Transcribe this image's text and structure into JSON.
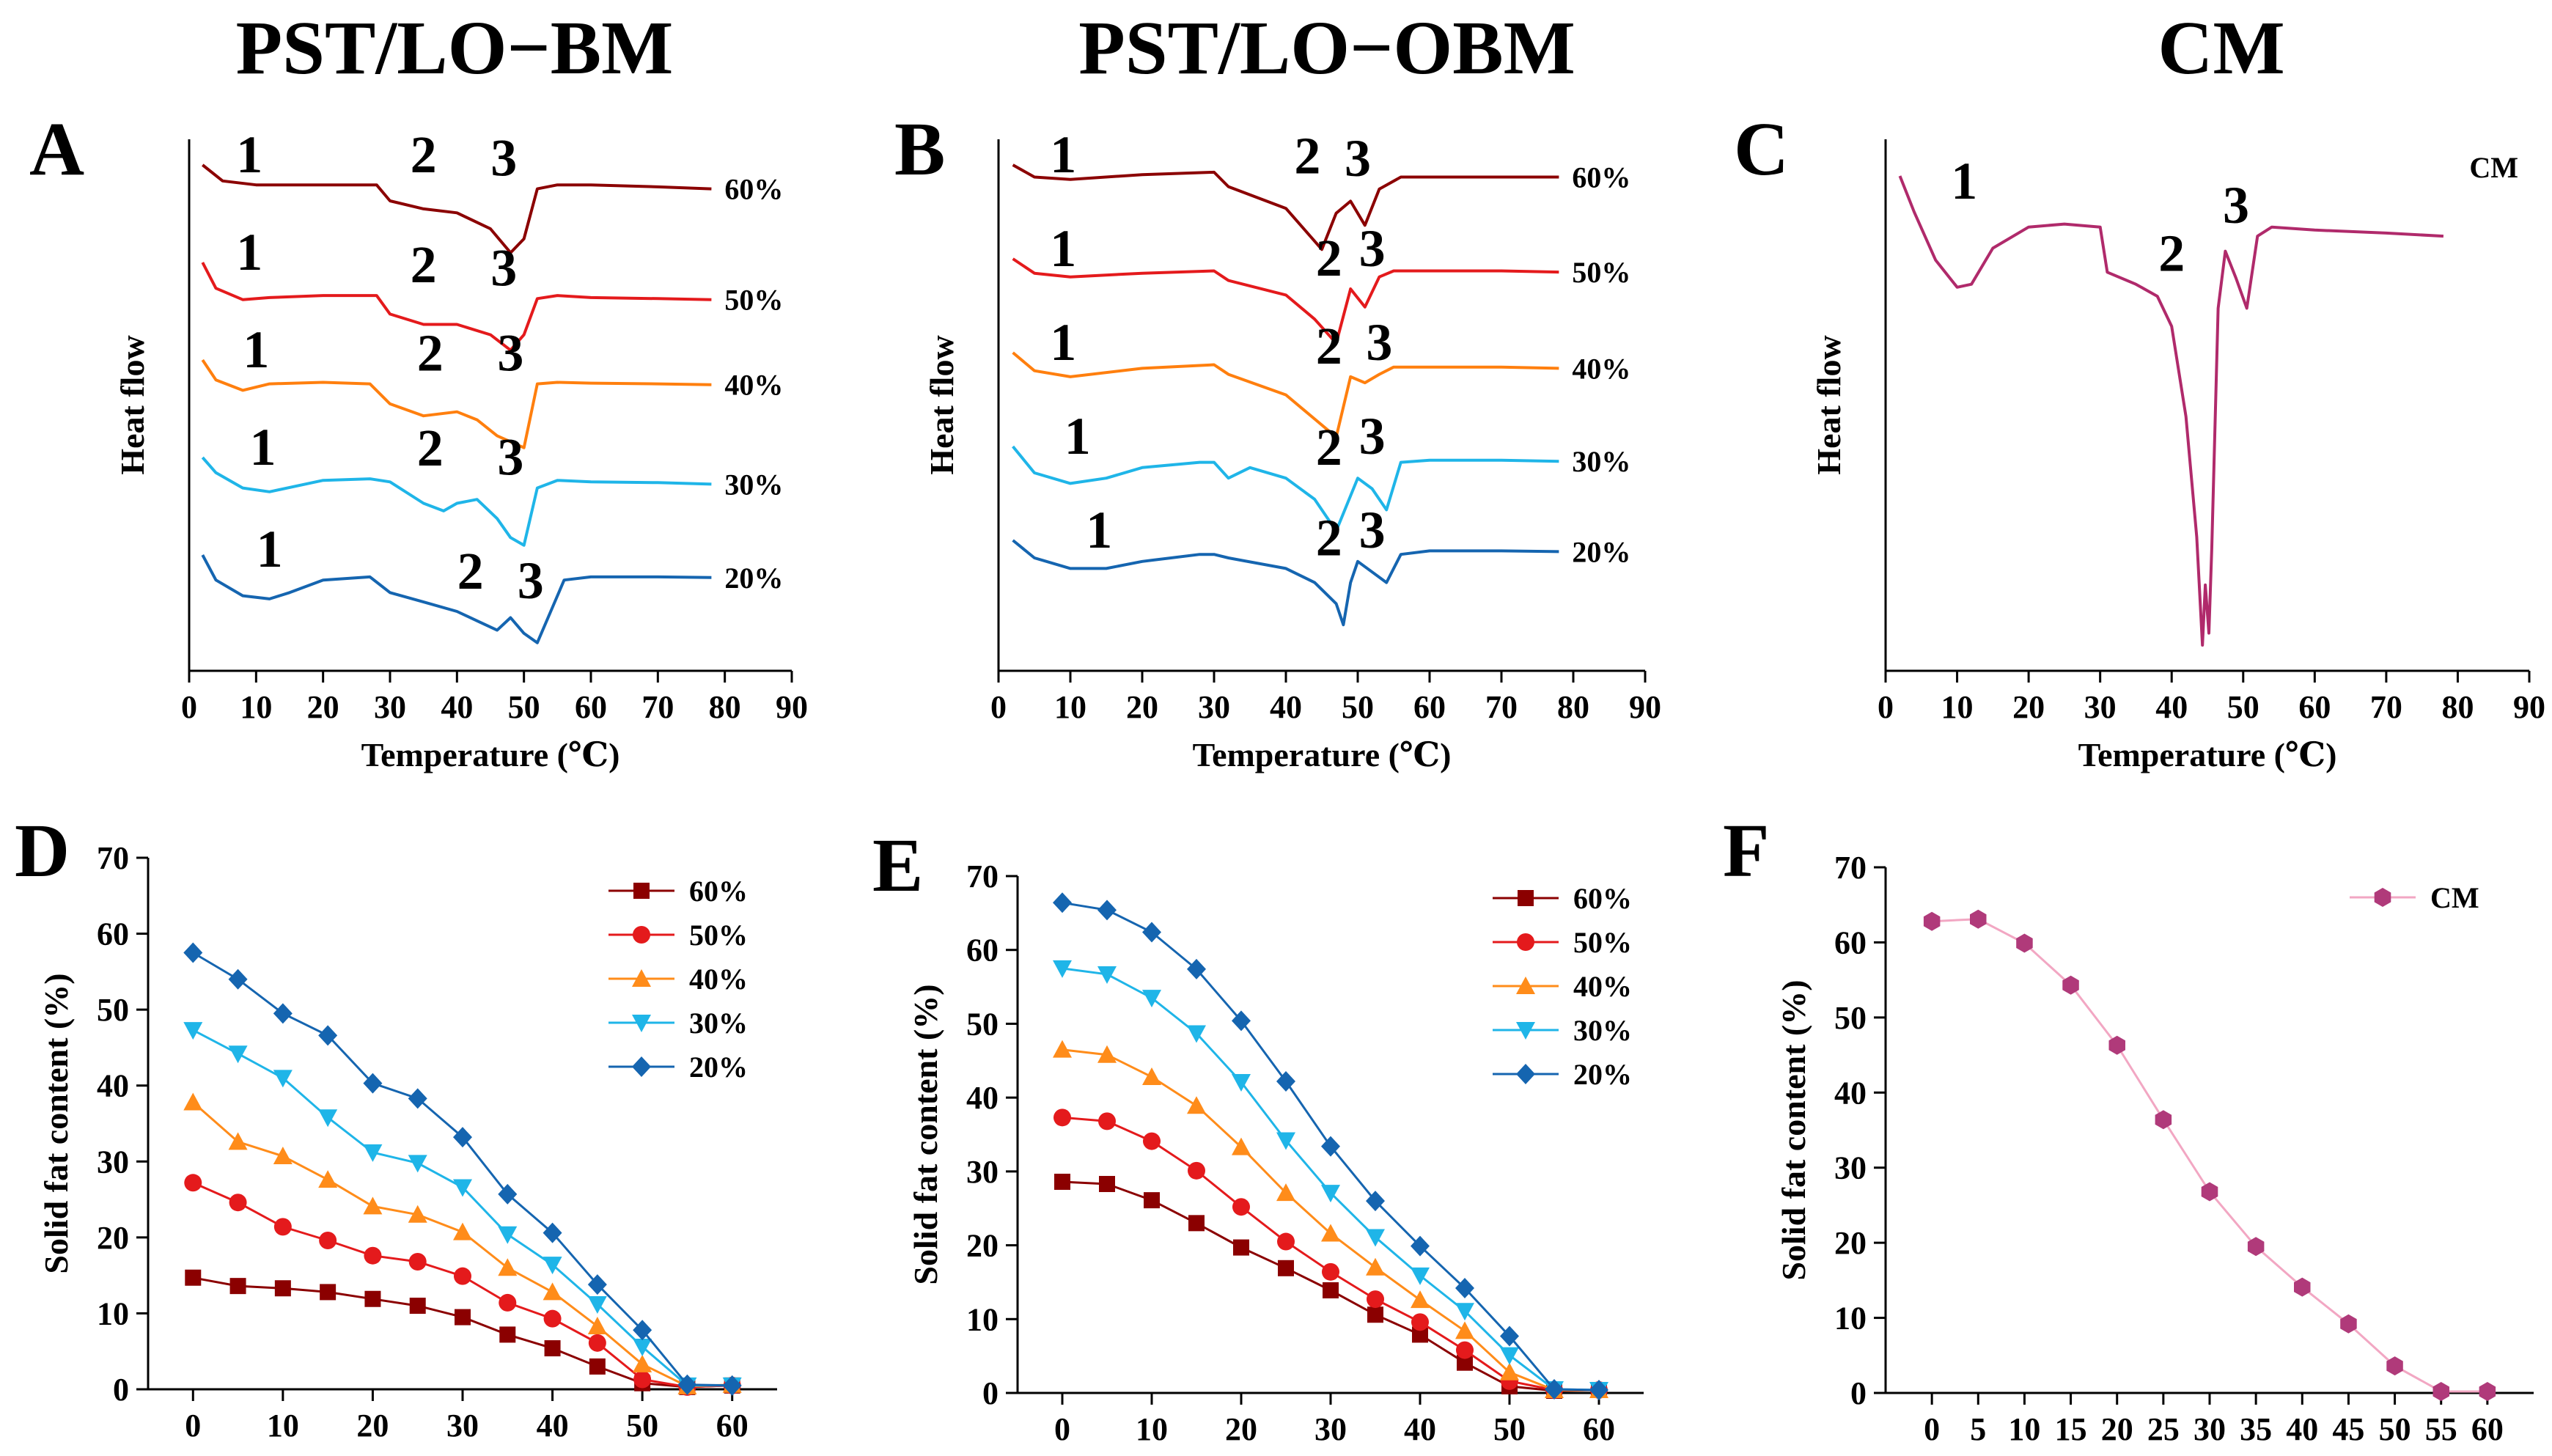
{
  "column_titles": [
    "PST/LO−BM",
    "PST/LO−OBM",
    "CM"
  ],
  "chart_data": [
    {
      "panel": "A",
      "type": "line",
      "title": "PST/LO−BM",
      "xlabel": "Temperature (℃)",
      "ylabel": "Heat flow",
      "xlim": [
        0,
        90
      ],
      "xticks": [
        0,
        10,
        20,
        30,
        40,
        50,
        60,
        70,
        80,
        90
      ],
      "grid": false,
      "series": [
        {
          "name": "60%",
          "color": "#8B0000",
          "x": [
            2,
            5,
            10,
            20,
            28,
            30,
            35,
            40,
            45,
            48,
            50,
            52,
            55,
            60,
            70,
            78
          ],
          "y": [
            0.2,
            -0.6,
            -0.8,
            -0.8,
            -0.8,
            -1.6,
            -2.0,
            -2.2,
            -3.0,
            -4.2,
            -3.5,
            -1.0,
            -0.8,
            -0.8,
            -0.9,
            -1.0
          ],
          "peaks": [
            {
              "label": "1",
              "x": 9
            },
            {
              "label": "2",
              "x": 35
            },
            {
              "label": "3",
              "x": 47
            }
          ]
        },
        {
          "name": "50%",
          "color": "#E41A1C",
          "x": [
            2,
            4,
            8,
            12,
            20,
            28,
            30,
            35,
            40,
            45,
            48,
            50,
            52,
            55,
            60,
            70,
            78
          ],
          "y": [
            0,
            -2.5,
            -3.6,
            -3.4,
            -3.2,
            -3.2,
            -5.0,
            -6.0,
            -6.0,
            -7.0,
            -8.5,
            -7.0,
            -3.5,
            -3.2,
            -3.4,
            -3.5,
            -3.6
          ],
          "peaks": [
            {
              "label": "1",
              "x": 9
            },
            {
              "label": "2",
              "x": 35
            },
            {
              "label": "3",
              "x": 47
            }
          ]
        },
        {
          "name": "40%",
          "color": "#FF7F0E",
          "x": [
            2,
            4,
            8,
            12,
            20,
            27,
            30,
            35,
            40,
            43,
            46,
            50,
            52,
            55,
            60,
            70,
            78
          ],
          "y": [
            0,
            -2.5,
            -3.8,
            -3.0,
            -2.8,
            -3.0,
            -5.5,
            -7.0,
            -6.5,
            -7.5,
            -9.5,
            -11.0,
            -3.0,
            -2.8,
            -2.9,
            -3.0,
            -3.1
          ],
          "peaks": [
            {
              "label": "1",
              "x": 10
            },
            {
              "label": "2",
              "x": 36
            },
            {
              "label": "3",
              "x": 48
            }
          ]
        },
        {
          "name": "30%",
          "color": "#1FB5E8",
          "x": [
            2,
            4,
            8,
            12,
            20,
            27,
            30,
            35,
            38,
            40,
            43,
            46,
            48,
            50,
            52,
            55,
            60,
            70,
            78
          ],
          "y": [
            0,
            -2.0,
            -4.0,
            -4.5,
            -3.0,
            -2.8,
            -3.2,
            -6.0,
            -7.0,
            -6.0,
            -5.5,
            -8.0,
            -10.5,
            -11.5,
            -4.0,
            -3.0,
            -3.2,
            -3.3,
            -3.5
          ],
          "peaks": [
            {
              "label": "1",
              "x": 11
            },
            {
              "label": "2",
              "x": 36
            },
            {
              "label": "3",
              "x": 48
            }
          ]
        },
        {
          "name": "20%",
          "color": "#1565B0",
          "x": [
            2,
            4,
            8,
            12,
            15,
            20,
            27,
            30,
            35,
            40,
            43,
            46,
            48,
            50,
            52,
            54,
            56,
            60,
            70,
            78
          ],
          "y": [
            0,
            -4.0,
            -6.5,
            -7.0,
            -6.0,
            -4.0,
            -3.5,
            -6.0,
            -7.5,
            -9.0,
            -10.5,
            -12.0,
            -10.0,
            -12.5,
            -14.0,
            -9.0,
            -4.0,
            -3.5,
            -3.5,
            -3.6
          ],
          "peaks": [
            {
              "label": "1",
              "x": 12
            },
            {
              "label": "2",
              "x": 42
            },
            {
              "label": "3",
              "x": 51
            }
          ]
        }
      ]
    },
    {
      "panel": "B",
      "type": "line",
      "title": "PST/LO−OBM",
      "xlabel": "Temperature (℃)",
      "ylabel": "Heat flow",
      "xlim": [
        0,
        90
      ],
      "xticks": [
        0,
        10,
        20,
        30,
        40,
        50,
        60,
        70,
        80,
        90
      ],
      "grid": false,
      "series": [
        {
          "name": "60%",
          "color": "#8B0000",
          "x": [
            2,
            5,
            10,
            20,
            30,
            32,
            40,
            45,
            47,
            49,
            51,
            53,
            56,
            60,
            70,
            78
          ],
          "y": [
            0,
            -0.5,
            -0.6,
            -0.4,
            -0.3,
            -0.9,
            -1.8,
            -3.5,
            -2.0,
            -1.5,
            -2.5,
            -1.0,
            -0.5,
            -0.5,
            -0.5,
            -0.5
          ],
          "peaks": [
            {
              "label": "1",
              "x": 9
            },
            {
              "label": "2",
              "x": 43
            },
            {
              "label": "3",
              "x": 50
            }
          ]
        },
        {
          "name": "50%",
          "color": "#E41A1C",
          "x": [
            2,
            5,
            10,
            20,
            30,
            32,
            40,
            44,
            47,
            49,
            51,
            53,
            55,
            60,
            70,
            78
          ],
          "y": [
            0,
            -1.2,
            -1.5,
            -1.2,
            -1.0,
            -1.8,
            -3.0,
            -5.0,
            -7.0,
            -2.5,
            -4.0,
            -1.5,
            -1.0,
            -1.0,
            -1.0,
            -1.1
          ],
          "peaks": [
            {
              "label": "1",
              "x": 9
            },
            {
              "label": "2",
              "x": 46
            },
            {
              "label": "3",
              "x": 52
            }
          ]
        },
        {
          "name": "40%",
          "color": "#FF7F0E",
          "x": [
            2,
            5,
            10,
            20,
            30,
            32,
            40,
            44,
            47,
            49,
            51,
            53,
            55,
            60,
            70,
            78
          ],
          "y": [
            0,
            -1.5,
            -2.0,
            -1.3,
            -1.0,
            -1.8,
            -3.5,
            -5.5,
            -7.0,
            -2.0,
            -2.5,
            -1.8,
            -1.2,
            -1.2,
            -1.2,
            -1.3
          ],
          "peaks": [
            {
              "label": "1",
              "x": 9
            },
            {
              "label": "2",
              "x": 46
            },
            {
              "label": "3",
              "x": 53
            }
          ]
        },
        {
          "name": "30%",
          "color": "#1FB5E8",
          "x": [
            2,
            5,
            10,
            15,
            20,
            28,
            30,
            32,
            35,
            40,
            44,
            47,
            50,
            52,
            54,
            56,
            60,
            70,
            78
          ],
          "y": [
            0,
            -2.5,
            -3.5,
            -3.0,
            -2.0,
            -1.5,
            -1.5,
            -3.0,
            -2.0,
            -3.0,
            -5.0,
            -8.0,
            -3.0,
            -4.0,
            -6.0,
            -1.5,
            -1.3,
            -1.3,
            -1.4
          ],
          "peaks": [
            {
              "label": "1",
              "x": 11
            },
            {
              "label": "2",
              "x": 46
            },
            {
              "label": "3",
              "x": 52
            }
          ]
        },
        {
          "name": "20%",
          "color": "#1565B0",
          "x": [
            2,
            5,
            10,
            15,
            20,
            28,
            30,
            32,
            40,
            44,
            47,
            48,
            49,
            50,
            52,
            54,
            56,
            60,
            70,
            78
          ],
          "y": [
            0,
            -2.5,
            -4.0,
            -4.0,
            -3.0,
            -2.0,
            -2.0,
            -2.5,
            -4.0,
            -6.0,
            -9.0,
            -12.0,
            -6.0,
            -3.0,
            -4.5,
            -6.0,
            -2.0,
            -1.5,
            -1.5,
            -1.6
          ],
          "peaks": [
            {
              "label": "1",
              "x": 14
            },
            {
              "label": "2",
              "x": 46
            },
            {
              "label": "3",
              "x": 52
            }
          ]
        }
      ]
    },
    {
      "panel": "C",
      "type": "line",
      "title": "CM",
      "xlabel": "Temperature (℃)",
      "ylabel": "Heat flow",
      "xlim": [
        0,
        90
      ],
      "xticks": [
        0,
        10,
        20,
        30,
        40,
        50,
        60,
        70,
        80,
        90
      ],
      "grid": false,
      "series": [
        {
          "name": "CM",
          "color": "#B02A6B",
          "x": [
            2,
            4,
            7,
            10,
            12,
            15,
            20,
            25,
            30,
            31,
            35,
            38,
            40,
            42,
            43.5,
            44.3,
            44.7,
            45.2,
            45.6,
            46.5,
            47.5,
            49,
            50.5,
            52,
            54,
            60,
            70,
            78
          ],
          "y": [
            0,
            -6,
            -14,
            -18.5,
            -18,
            -12,
            -8.5,
            -8,
            -8.5,
            -16,
            -18,
            -20,
            -25,
            -40,
            -60,
            -78,
            -68,
            -76,
            -62,
            -22,
            -12.5,
            -17,
            -22,
            -10,
            -8.5,
            -9,
            -9.5,
            -10
          ],
          "peaks": [
            {
              "label": "1",
              "x": 11
            },
            {
              "label": "2",
              "x": 40
            },
            {
              "label": "3",
              "x": 49
            }
          ]
        }
      ]
    },
    {
      "panel": "D",
      "type": "line",
      "title": "",
      "xlabel": "",
      "ylabel": "Solid fat content (%)",
      "xlim": [
        -5,
        65
      ],
      "ylim": [
        0,
        70
      ],
      "xticks": [
        0,
        10,
        20,
        30,
        40,
        50,
        60
      ],
      "yticks": [
        0,
        10,
        20,
        30,
        40,
        50,
        60,
        70
      ],
      "legend_position": "top-right",
      "x": [
        0,
        5,
        10,
        15,
        20,
        25,
        30,
        35,
        40,
        45,
        50,
        55,
        60
      ],
      "series": [
        {
          "name": "60%",
          "color": "#8B0000",
          "marker": "square",
          "values": [
            14.7,
            13.6,
            13.3,
            12.8,
            11.9,
            11.0,
            9.5,
            7.2,
            5.4,
            3.0,
            0.8,
            0.3,
            0.5
          ]
        },
        {
          "name": "50%",
          "color": "#E41A1C",
          "marker": "circle",
          "values": [
            27.2,
            24.6,
            21.4,
            19.6,
            17.6,
            16.8,
            14.9,
            11.4,
            9.3,
            6.1,
            1.3,
            0.3,
            0.5
          ]
        },
        {
          "name": "40%",
          "color": "#FF8C1A",
          "marker": "triangle-up",
          "values": [
            37.8,
            32.6,
            30.7,
            27.6,
            24.1,
            23.0,
            20.7,
            16.0,
            12.8,
            8.3,
            3.3,
            0.4,
            0.6
          ]
        },
        {
          "name": "30%",
          "color": "#1FB5E8",
          "marker": "triangle-down",
          "values": [
            47.3,
            44.2,
            41.0,
            35.8,
            31.2,
            29.8,
            26.6,
            20.4,
            16.4,
            11.2,
            5.6,
            0.5,
            0.5
          ]
        },
        {
          "name": "20%",
          "color": "#1565B0",
          "marker": "diamond",
          "values": [
            57.5,
            54.0,
            49.5,
            46.6,
            40.3,
            38.3,
            33.2,
            25.7,
            20.6,
            13.8,
            7.8,
            0.6,
            0.5
          ]
        }
      ]
    },
    {
      "panel": "E",
      "type": "line",
      "title": "",
      "xlabel": "",
      "ylabel": "Solid fat content (%)",
      "xlim": [
        -5,
        65
      ],
      "ylim": [
        0,
        70
      ],
      "xticks": [
        0,
        10,
        20,
        30,
        40,
        50,
        60
      ],
      "yticks": [
        0,
        10,
        20,
        30,
        40,
        50,
        60,
        70
      ],
      "legend_position": "top-right",
      "x": [
        0,
        5,
        10,
        15,
        20,
        25,
        30,
        35,
        40,
        45,
        50,
        55,
        60
      ],
      "series": [
        {
          "name": "60%",
          "color": "#8B0000",
          "marker": "square",
          "values": [
            28.6,
            28.3,
            26.1,
            23.0,
            19.7,
            16.9,
            13.9,
            10.6,
            7.9,
            4.1,
            0.9,
            0.3,
            0.4
          ]
        },
        {
          "name": "50%",
          "color": "#E41A1C",
          "marker": "circle",
          "values": [
            37.3,
            36.8,
            34.1,
            30.1,
            25.2,
            20.5,
            16.4,
            12.7,
            9.6,
            5.8,
            1.6,
            0.4,
            0.4
          ]
        },
        {
          "name": "40%",
          "color": "#FF8C1A",
          "marker": "triangle-up",
          "values": [
            46.5,
            45.8,
            42.8,
            38.9,
            33.3,
            27.1,
            21.6,
            17.0,
            12.6,
            8.4,
            2.8,
            0.4,
            0.4
          ]
        },
        {
          "name": "30%",
          "color": "#1FB5E8",
          "marker": "triangle-down",
          "values": [
            57.5,
            56.7,
            53.5,
            48.7,
            42.1,
            34.2,
            27.1,
            21.1,
            15.9,
            11.1,
            5.1,
            0.5,
            0.4
          ]
        },
        {
          "name": "20%",
          "color": "#1565B0",
          "marker": "diamond",
          "values": [
            66.4,
            65.4,
            62.4,
            57.4,
            50.4,
            42.2,
            33.4,
            26.0,
            19.9,
            14.2,
            7.7,
            0.5,
            0.4
          ]
        }
      ]
    },
    {
      "panel": "F",
      "type": "line",
      "title": "",
      "xlabel": "",
      "ylabel": "Solid fat content (%)",
      "xlim": [
        -5,
        65
      ],
      "ylim": [
        0,
        70
      ],
      "xticks": [
        0,
        5,
        10,
        15,
        20,
        25,
        30,
        35,
        40,
        45,
        50,
        55,
        60
      ],
      "yticks": [
        0,
        10,
        20,
        30,
        40,
        50,
        60,
        70
      ],
      "legend_position": "top-right",
      "x": [
        0,
        5,
        10,
        15,
        20,
        25,
        30,
        35,
        40,
        45,
        50,
        55,
        60
      ],
      "series": [
        {
          "name": "CM",
          "color": "#B03A7A",
          "line_color": "#F2A7C3",
          "marker": "hexagon",
          "values": [
            62.8,
            63.1,
            59.9,
            54.3,
            46.3,
            36.4,
            26.8,
            19.5,
            14.1,
            9.2,
            3.6,
            0.2,
            0.2
          ]
        }
      ]
    }
  ]
}
